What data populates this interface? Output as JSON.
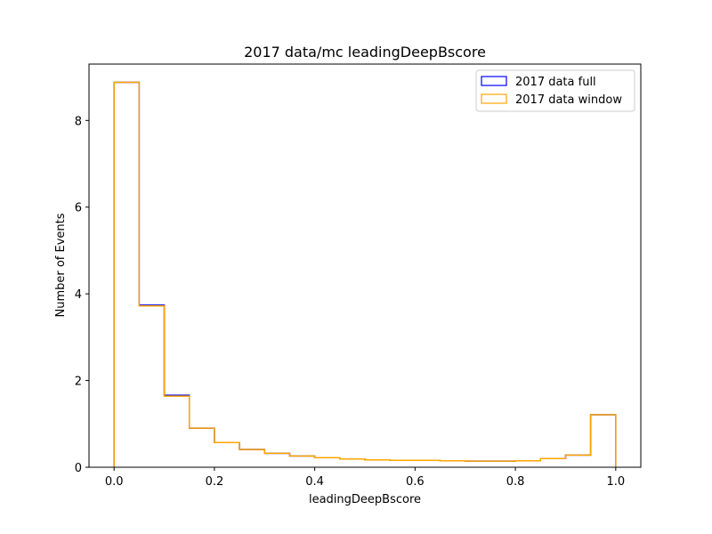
{
  "chart_data": {
    "type": "step histogram",
    "title": "2017 data/mc leadingDeepBscore",
    "xlabel": "leadingDeepBscore",
    "ylabel": "Number of Events",
    "xlim": [
      -0.05,
      1.05
    ],
    "ylim": [
      0,
      9.3
    ],
    "xticks": [
      "0.0",
      "0.2",
      "0.4",
      "0.6",
      "0.8",
      "1.0"
    ],
    "xtick_values": [
      0.0,
      0.2,
      0.4,
      0.6,
      0.8,
      1.0
    ],
    "yticks": [
      "0",
      "2",
      "4",
      "6",
      "8"
    ],
    "ytick_values": [
      0,
      2,
      4,
      6,
      8
    ],
    "grid": false,
    "legend_position": "top-right",
    "bin_edges": [
      0.0,
      0.05,
      0.1,
      0.15,
      0.2,
      0.25,
      0.3,
      0.35,
      0.4,
      0.45,
      0.5,
      0.55,
      0.6,
      0.65,
      0.7,
      0.75,
      0.8,
      0.85,
      0.9,
      0.95,
      1.0
    ],
    "series": [
      {
        "name": "2017 data full",
        "color": "#0000ff",
        "values": [
          8.88,
          3.74,
          1.66,
          0.9,
          0.57,
          0.41,
          0.32,
          0.26,
          0.22,
          0.19,
          0.17,
          0.16,
          0.16,
          0.15,
          0.14,
          0.14,
          0.15,
          0.2,
          0.28,
          1.21
        ]
      },
      {
        "name": "2017 data window",
        "color": "#ffa500",
        "values": [
          8.88,
          3.72,
          1.64,
          0.9,
          0.57,
          0.41,
          0.32,
          0.26,
          0.22,
          0.19,
          0.17,
          0.16,
          0.16,
          0.15,
          0.14,
          0.14,
          0.15,
          0.2,
          0.28,
          1.21
        ]
      }
    ]
  }
}
